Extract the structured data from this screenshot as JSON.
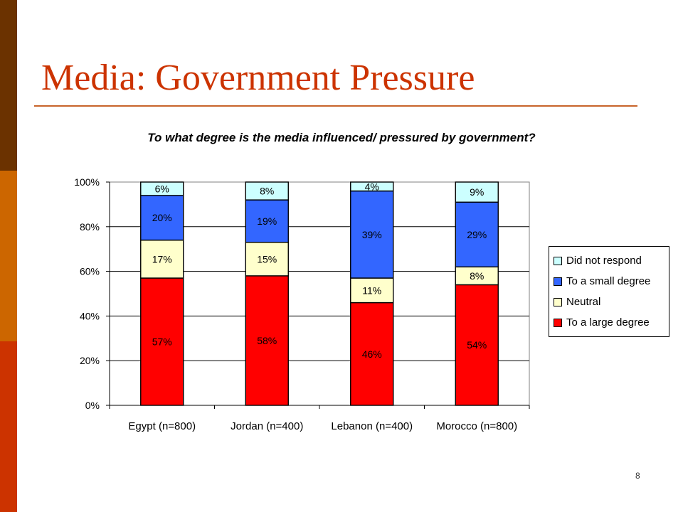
{
  "slide": {
    "title": "Media: Government Pressure",
    "page_number": "8"
  },
  "colors": {
    "to_a_large_degree": "#ff0000",
    "neutral": "#ffffcc",
    "to_a_small_degree": "#3366ff",
    "did_not_respond": "#ccffff",
    "title": "#cc3300"
  },
  "chart_data": {
    "type": "bar",
    "stacked": true,
    "title": "To what degree is the media influenced/ pressured by government?",
    "categories": [
      "Egypt (n=800)",
      "Jordan (n=400)",
      "Lebanon (n=400)",
      "Morocco (n=800)"
    ],
    "series": [
      {
        "name": "To a large degree",
        "values": [
          57,
          58,
          46,
          54
        ],
        "labels": [
          "57%",
          "58%",
          "46%",
          "54%"
        ],
        "color": "#ff0000"
      },
      {
        "name": "Neutral",
        "values": [
          17,
          15,
          11,
          8
        ],
        "labels": [
          "17%",
          "15%",
          "11%",
          "8%"
        ],
        "color": "#ffffcc"
      },
      {
        "name": "To a small degree",
        "values": [
          20,
          19,
          39,
          29
        ],
        "labels": [
          "20%",
          "19%",
          "39%",
          "29%"
        ],
        "color": "#3366ff"
      },
      {
        "name": "Did not respond",
        "values": [
          6,
          8,
          4,
          9
        ],
        "labels": [
          "6%",
          "8%",
          "4%",
          "9%"
        ],
        "color": "#ccffff"
      }
    ],
    "yticks": [
      "0%",
      "20%",
      "40%",
      "60%",
      "80%",
      "100%"
    ],
    "ylim": [
      0,
      100
    ],
    "grid": true,
    "legend_position": "right",
    "legend_order": [
      "Did not respond",
      "To a small degree",
      "Neutral",
      "To a large degree"
    ]
  }
}
